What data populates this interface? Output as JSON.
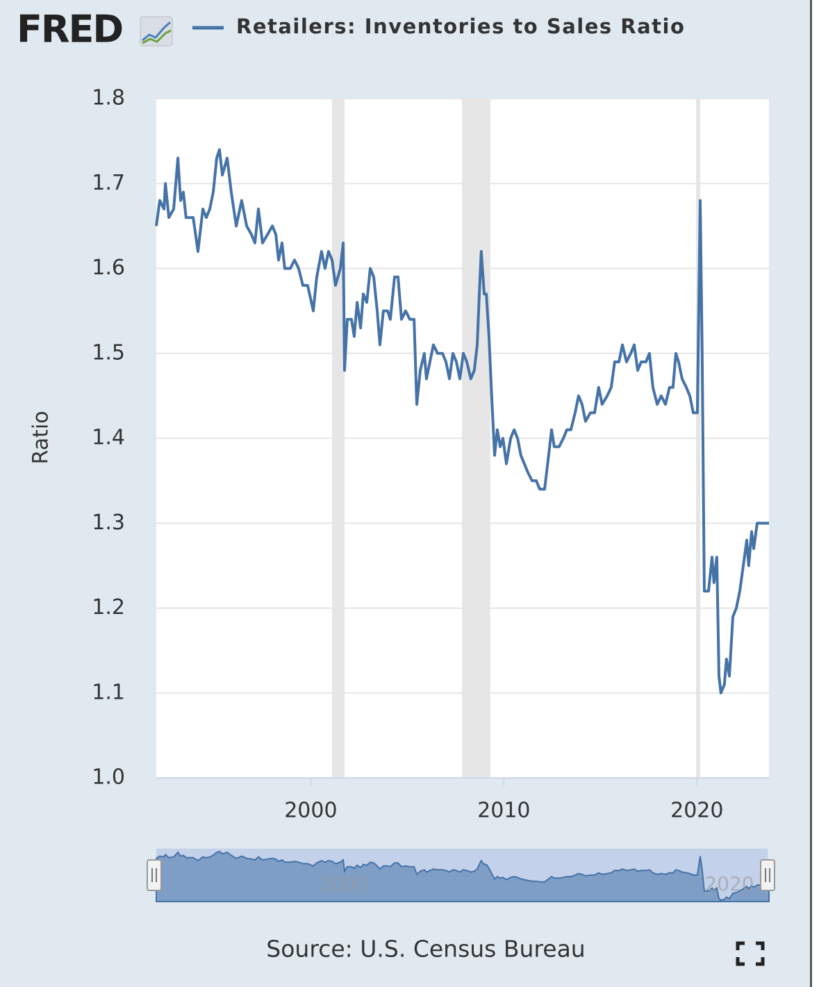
{
  "chart_data": {
    "type": "line",
    "logo": "FRED",
    "y_label": "Ratio",
    "source": "Source: U.S. Census Bureau",
    "xlim": [
      1992,
      2023.73
    ],
    "xticks": [
      2000,
      2010,
      2020
    ],
    "ylim": [
      1,
      1.8
    ],
    "yticks": [
      {
        "value": 1,
        "label": "1.0"
      },
      1.1,
      1.2,
      1.3,
      1.4,
      1.5,
      1.6,
      1.7,
      1.8
    ],
    "grid": true,
    "recessions": [
      [
        2001.1,
        2001.75
      ],
      [
        2007.83,
        2009.3
      ],
      [
        2019.95,
        2020.17
      ]
    ],
    "recession_color": "#e6e6e6",
    "x": [
      1992.0,
      1992.18,
      1992.4,
      1992.47,
      1992.65,
      1992.9,
      1993.12,
      1993.26,
      1993.4,
      1993.54,
      1993.91,
      1994.16,
      1994.41,
      1994.59,
      1994.77,
      1994.95,
      1995.13,
      1995.27,
      1995.42,
      1995.67,
      1995.88,
      1996.14,
      1996.42,
      1996.68,
      1996.93,
      1997.11,
      1997.29,
      1997.5,
      1997.76,
      1998.01,
      1998.19,
      1998.33,
      1998.51,
      1998.65,
      1998.94,
      1999.16,
      1999.37,
      1999.59,
      1999.84,
      2000.13,
      2000.31,
      2000.56,
      2000.74,
      2000.92,
      2001.1,
      2001.28,
      2001.53,
      2001.68,
      2001.75,
      2001.89,
      2002.11,
      2002.25,
      2002.4,
      2002.58,
      2002.72,
      2002.9,
      2003.08,
      2003.26,
      2003.44,
      2003.58,
      2003.76,
      2003.98,
      2004.12,
      2004.34,
      2004.52,
      2004.7,
      2004.91,
      2005.13,
      2005.35,
      2005.49,
      2005.67,
      2005.88,
      2005.99,
      2006.17,
      2006.35,
      2006.57,
      2006.82,
      2007.0,
      2007.18,
      2007.36,
      2007.54,
      2007.72,
      2007.9,
      2008.08,
      2008.29,
      2008.47,
      2008.62,
      2008.73,
      2008.83,
      2008.98,
      2009.09,
      2009.23,
      2009.37,
      2009.52,
      2009.66,
      2009.81,
      2009.95,
      2010.13,
      2010.35,
      2010.53,
      2010.71,
      2010.88,
      2011.06,
      2011.24,
      2011.46,
      2011.68,
      2011.86,
      2012.11,
      2012.32,
      2012.47,
      2012.61,
      2012.86,
      2013.08,
      2013.26,
      2013.47,
      2013.69,
      2013.87,
      2014.05,
      2014.23,
      2014.48,
      2014.7,
      2014.91,
      2015.09,
      2015.35,
      2015.56,
      2015.74,
      2015.96,
      2016.14,
      2016.35,
      2016.57,
      2016.75,
      2016.93,
      2017.11,
      2017.36,
      2017.54,
      2017.72,
      2017.94,
      2018.15,
      2018.37,
      2018.58,
      2018.76,
      2018.91,
      2019.05,
      2019.23,
      2019.45,
      2019.63,
      2019.81,
      2020.02,
      2020.17,
      2020.27,
      2020.38,
      2020.6,
      2020.78,
      2020.88,
      2021.03,
      2021.14,
      2021.24,
      2021.42,
      2021.53,
      2021.68,
      2021.86,
      2022.04,
      2022.22,
      2022.4,
      2022.58,
      2022.68,
      2022.83,
      2022.94,
      2023.12,
      2023.29,
      2023.73
    ],
    "series": [
      {
        "name": "Retailers: Inventories to Sales Ratio",
        "color": "#4572a7",
        "values": [
          1.65,
          1.68,
          1.67,
          1.7,
          1.66,
          1.67,
          1.73,
          1.68,
          1.69,
          1.66,
          1.66,
          1.62,
          1.67,
          1.66,
          1.67,
          1.69,
          1.73,
          1.74,
          1.71,
          1.73,
          1.69,
          1.65,
          1.68,
          1.65,
          1.64,
          1.63,
          1.67,
          1.63,
          1.64,
          1.65,
          1.64,
          1.61,
          1.63,
          1.6,
          1.6,
          1.61,
          1.6,
          1.58,
          1.58,
          1.55,
          1.59,
          1.62,
          1.6,
          1.62,
          1.61,
          1.58,
          1.6,
          1.63,
          1.48,
          1.54,
          1.54,
          1.52,
          1.56,
          1.53,
          1.57,
          1.56,
          1.6,
          1.59,
          1.55,
          1.51,
          1.55,
          1.55,
          1.54,
          1.59,
          1.59,
          1.54,
          1.55,
          1.54,
          1.54,
          1.44,
          1.48,
          1.5,
          1.47,
          1.49,
          1.51,
          1.5,
          1.5,
          1.49,
          1.47,
          1.5,
          1.49,
          1.47,
          1.5,
          1.49,
          1.47,
          1.48,
          1.51,
          1.57,
          1.62,
          1.57,
          1.57,
          1.52,
          1.45,
          1.38,
          1.41,
          1.39,
          1.4,
          1.37,
          1.4,
          1.41,
          1.4,
          1.38,
          1.37,
          1.36,
          1.35,
          1.35,
          1.34,
          1.34,
          1.38,
          1.41,
          1.39,
          1.39,
          1.4,
          1.41,
          1.41,
          1.43,
          1.45,
          1.44,
          1.42,
          1.43,
          1.43,
          1.46,
          1.44,
          1.45,
          1.46,
          1.49,
          1.49,
          1.51,
          1.49,
          1.5,
          1.51,
          1.48,
          1.49,
          1.49,
          1.5,
          1.46,
          1.44,
          1.45,
          1.44,
          1.46,
          1.46,
          1.5,
          1.49,
          1.47,
          1.46,
          1.45,
          1.43,
          1.43,
          1.68,
          1.5,
          1.22,
          1.22,
          1.26,
          1.23,
          1.26,
          1.12,
          1.1,
          1.11,
          1.14,
          1.12,
          1.19,
          1.2,
          1.22,
          1.25,
          1.28,
          1.25,
          1.29,
          1.27,
          1.3,
          1.3,
          1.3
        ]
      }
    ]
  }
}
